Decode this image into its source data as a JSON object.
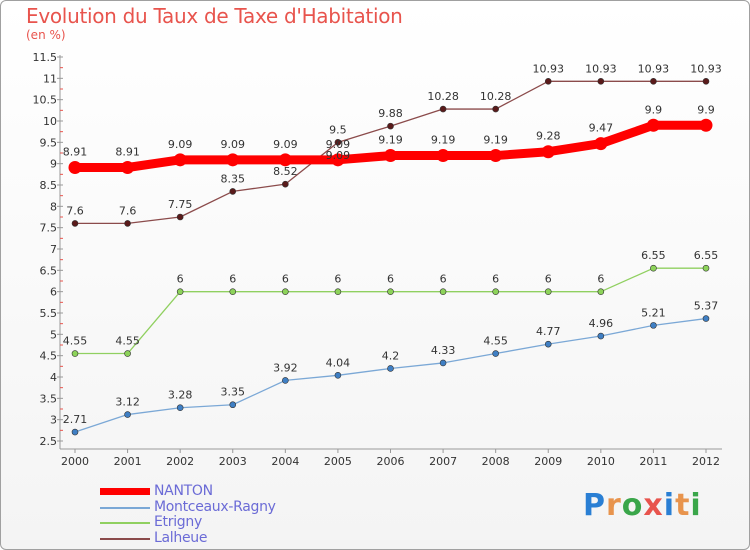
{
  "header": {
    "title": "Evolution du Taux de Taxe d'Habitation",
    "unit": "(en %)"
  },
  "logo": {
    "text": "Proxiti",
    "letters": [
      "P",
      "r",
      "o",
      "x",
      "i",
      "t",
      "i"
    ],
    "colors": [
      "#2a7fd4",
      "#e8944d",
      "#3aa64a",
      "#e8544d",
      "#2a7fd4",
      "#e8944d",
      "#3aa64a"
    ]
  },
  "chart_data": {
    "type": "line",
    "x": [
      "2000",
      "2001",
      "2002",
      "2003",
      "2004",
      "2005",
      "2006",
      "2007",
      "2008",
      "2009",
      "2010",
      "2011",
      "2012"
    ],
    "ylim": [
      2.5,
      11.5
    ],
    "yticks": [
      "2.5",
      "3",
      "3.5",
      "4",
      "4.5",
      "5",
      "5.5",
      "6",
      "6.5",
      "7",
      "7.5",
      "8",
      "8.5",
      "9",
      "9.5",
      "10",
      "10.5",
      "11",
      "11.5"
    ],
    "grid": false,
    "legend": "bottom-left",
    "series": [
      {
        "name": "NANTON",
        "color": "#ff0000",
        "values": [
          8.91,
          8.91,
          9.09,
          9.09,
          9.09,
          9.09,
          9.19,
          9.19,
          9.19,
          9.28,
          9.47,
          9.9,
          9.9
        ],
        "labels": [
          "8.91",
          "8.91",
          "9.09",
          "9.09",
          "9.09",
          "9.09",
          "9.19",
          "9.19",
          "9.19",
          "9.28",
          "9.47",
          "9.9",
          "9.9"
        ]
      },
      {
        "name": "Montceaux-Ragny",
        "color": "#7ba8d6",
        "marker": "#3f7fc4",
        "values": [
          2.71,
          3.12,
          3.28,
          3.35,
          3.92,
          4.04,
          4.2,
          4.33,
          4.55,
          4.77,
          4.96,
          5.21,
          5.37
        ],
        "labels": [
          "2.71",
          "3.12",
          "3.28",
          "3.35",
          "3.92",
          "4.04",
          "4.2",
          "4.33",
          "4.55",
          "4.77",
          "4.96",
          "5.21",
          "5.37"
        ]
      },
      {
        "name": "Etrigny",
        "color": "#90d060",
        "marker": "#8dd35a",
        "values": [
          4.55,
          4.55,
          6,
          6,
          6,
          6,
          6,
          6,
          6,
          6,
          6,
          6.55,
          6.55
        ],
        "labels": [
          "4.55",
          "4.55",
          "6",
          "6",
          "6",
          "6",
          "6",
          "6",
          "6",
          "6",
          "6",
          "6.55",
          "6.55"
        ]
      },
      {
        "name": "Lalheue",
        "color": "#8b4b4b",
        "marker": "#5a1a1a",
        "values": [
          7.6,
          7.6,
          7.75,
          8.35,
          8.52,
          9.5,
          9.88,
          10.28,
          10.28,
          10.93,
          10.93,
          10.93,
          10.93
        ],
        "labels": [
          "7.6",
          "7.6",
          "7.75",
          "8.35",
          "8.52",
          "9.5",
          "9.88",
          "10.28",
          "10.28",
          "10.93",
          "10.93",
          "10.93",
          "10.93"
        ]
      }
    ],
    "overlap_label": "9.09"
  }
}
